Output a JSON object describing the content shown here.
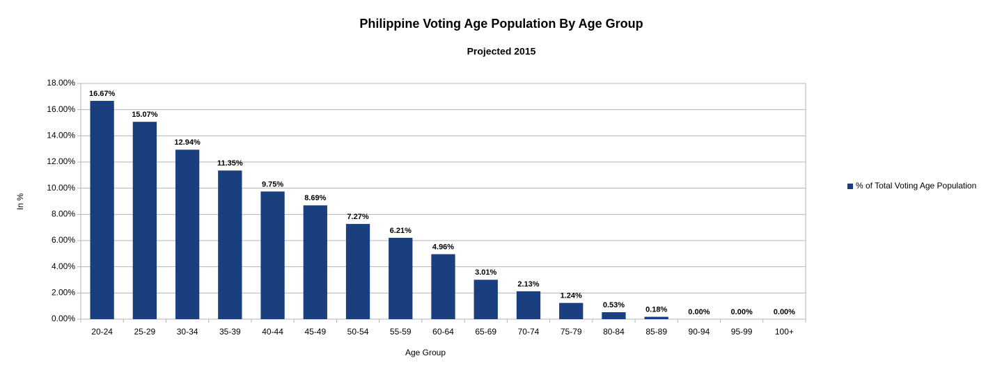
{
  "chart_data": {
    "type": "bar",
    "title": "Philippine Voting Age Population By Age Group",
    "subtitle": "Projected 2015",
    "x_label": "Age Group",
    "y_label": "In %",
    "categories": [
      "20-24",
      "25-29",
      "30-34",
      "35-39",
      "40-44",
      "45-49",
      "50-54",
      "55-59",
      "60-64",
      "65-69",
      "70-74",
      "75-79",
      "80-84",
      "85-89",
      "90-94",
      "95-99",
      "100+"
    ],
    "series": [
      {
        "name": "% of Total Voting Age Population",
        "color": "#1a3f7e",
        "values": [
          16.67,
          15.07,
          12.94,
          11.35,
          9.75,
          8.69,
          7.27,
          6.21,
          4.96,
          3.01,
          2.13,
          1.24,
          0.53,
          0.18,
          0,
          0,
          0
        ],
        "value_labels": [
          "16.67%",
          "15.07%",
          "12.94%",
          "11.35%",
          "9.75%",
          "8.69%",
          "7.27%",
          "6.21%",
          "4.96%",
          "3.01%",
          "2.13%",
          "1.24%",
          "0.53%",
          "0.18%",
          "0.00%",
          "0.00%",
          "0.00%"
        ]
      }
    ],
    "ylim": [
      0,
      18
    ],
    "yticks": [
      {
        "value": 0,
        "label": "0.00%"
      },
      {
        "value": 2,
        "label": "2.00%"
      },
      {
        "value": 4,
        "label": "4.00%"
      },
      {
        "value": 6,
        "label": "6.00%"
      },
      {
        "value": 8,
        "label": "8.00%"
      },
      {
        "value": 10,
        "label": "10.00%"
      },
      {
        "value": 12,
        "label": "12.00%"
      },
      {
        "value": 14,
        "label": "14.00%"
      },
      {
        "value": 16,
        "label": "16.00%"
      },
      {
        "value": 18,
        "label": "18.00%"
      }
    ],
    "grid": true,
    "legend": "right"
  }
}
